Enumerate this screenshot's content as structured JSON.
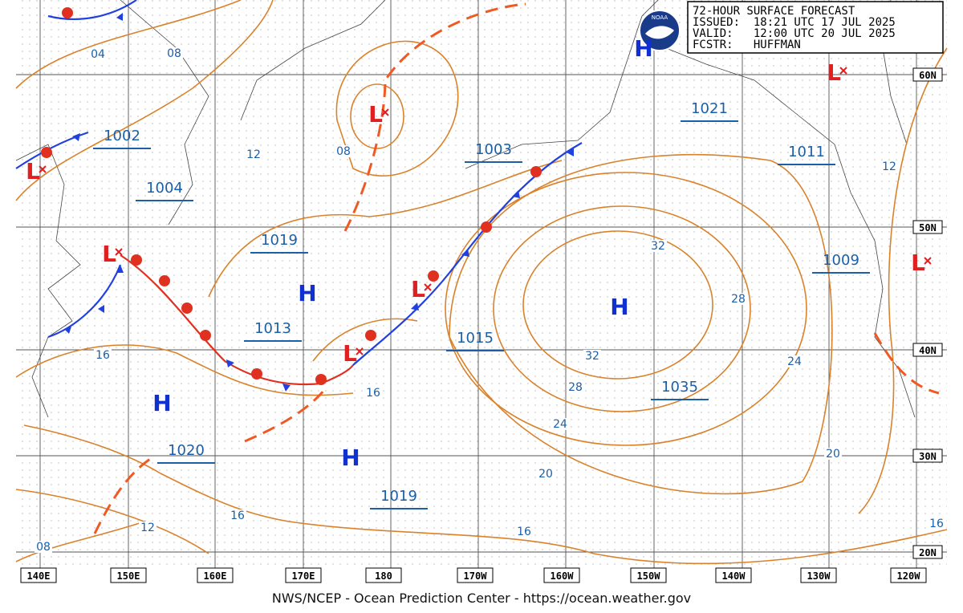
{
  "header": {
    "lines": [
      "72-HOUR SURFACE FORECAST",
      "ISSUED:  18:21 UTC 17 JUL 2025",
      "VALID:   12:00 UTC 20 JUL 2025",
      "FCSTR:   HUFFMAN"
    ]
  },
  "logo": "NOAA",
  "longitudes": [
    "140E",
    "150E",
    "160E",
    "170E",
    "180",
    "170W",
    "160W",
    "150W",
    "140W",
    "130W",
    "120W"
  ],
  "latitudes": [
    "60N",
    "50N",
    "40N",
    "30N",
    "20N"
  ],
  "pressure_labels": [
    "1002",
    "1004",
    "1019",
    "1013",
    "1003",
    "1015",
    "1021",
    "1011",
    "1009",
    "1035",
    "1020",
    "1019"
  ],
  "isobar_labels": [
    "04",
    "08",
    "12",
    "08",
    "16",
    "16",
    "32",
    "28",
    "32",
    "28",
    "24",
    "24",
    "20",
    "20",
    "16",
    "16",
    "12",
    "08",
    "12",
    "16"
  ],
  "highs": [
    "H",
    "H",
    "H",
    "H",
    "H"
  ],
  "lows": [
    "L",
    "L",
    "L",
    "L",
    "L",
    "L",
    "L"
  ],
  "footer": "NWS/NCEP - Ocean Prediction Center - https://ocean.weather.gov"
}
